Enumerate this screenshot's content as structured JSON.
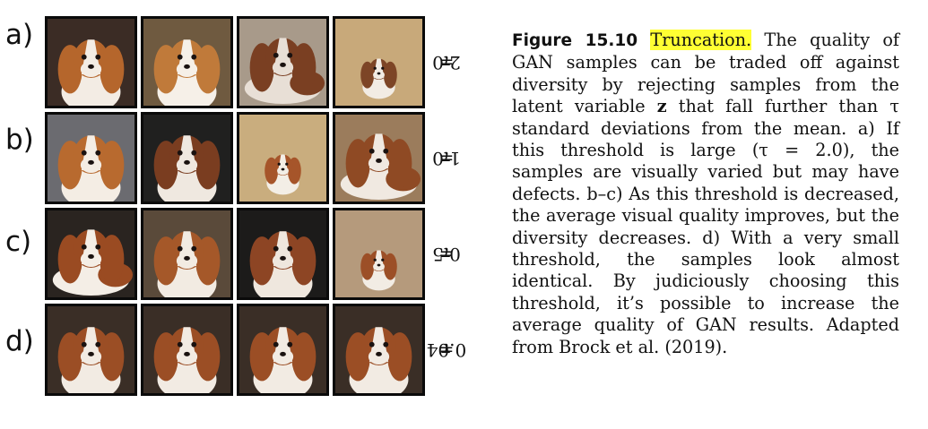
{
  "rows": [
    {
      "label": "a)",
      "tau": "2.0",
      "tiles": [
        {
          "bg": "#3b2c25",
          "coat": "#b5662c",
          "face": "#f3ece4",
          "kind": "portrait"
        },
        {
          "bg": "#6f5a40",
          "coat": "#c07a3a",
          "face": "#f6f0e8",
          "kind": "portrait"
        },
        {
          "bg": "#a89a8a",
          "coat": "#7a3f22",
          "face": "#e8dfd6",
          "kind": "lying"
        },
        {
          "bg": "#c8a97a",
          "coat": "#7d4526",
          "face": "#f2ece4",
          "kind": "small"
        }
      ]
    },
    {
      "label": "b)",
      "tau": "1.0",
      "tiles": [
        {
          "bg": "#6b6b70",
          "coat": "#b86a2f",
          "face": "#f4ede4",
          "kind": "portrait"
        },
        {
          "bg": "#20201f",
          "coat": "#7a3d20",
          "face": "#efe8e0",
          "kind": "portrait"
        },
        {
          "bg": "#c9ad7e",
          "coat": "#a6552a",
          "face": "#f3eee6",
          "kind": "small"
        },
        {
          "bg": "#9b7c5c",
          "coat": "#8f4a24",
          "face": "#f0e9e1",
          "kind": "lying"
        }
      ]
    },
    {
      "label": "c)",
      "tau": "0.5",
      "tiles": [
        {
          "bg": "#2a2420",
          "coat": "#9a4b22",
          "face": "#f4eee6",
          "kind": "lying"
        },
        {
          "bg": "#5a4a3a",
          "coat": "#a55829",
          "face": "#f2ebe2",
          "kind": "portrait"
        },
        {
          "bg": "#1c1b1a",
          "coat": "#8d4524",
          "face": "#efe7de",
          "kind": "portrait"
        },
        {
          "bg": "#b59a7c",
          "coat": "#9c4f27",
          "face": "#f2ece4",
          "kind": "small"
        }
      ]
    },
    {
      "label": "d)",
      "tau": "0.04",
      "tiles": [
        {
          "bg": "#3a2e26",
          "coat": "#9b4e25",
          "face": "#f2ebe3",
          "kind": "portrait"
        },
        {
          "bg": "#3a2e26",
          "coat": "#9b4e25",
          "face": "#f2ebe3",
          "kind": "portrait"
        },
        {
          "bg": "#3a2e26",
          "coat": "#9b4e25",
          "face": "#f2ebe3",
          "kind": "portrait"
        },
        {
          "bg": "#3a2e26",
          "coat": "#9b4e25",
          "face": "#f2ebe3",
          "kind": "portrait"
        }
      ]
    }
  ],
  "tau_symbol": "τ",
  "tau_equals": " = ",
  "caption": {
    "figure_label": "Figure 15.10",
    "highlight": "Truncation.",
    "body": " The quality of GAN samples can be traded off against diversity by rejecting samples from the latent variable ",
    "bold_z": "z",
    "body2": " that fall further than τ standard deviations from the mean. a) If this threshold is large (τ = 2.0), the samples are visually varied but may have defects. b–c) As this threshold is decreased, the average visual quality improves, but the diversity decreases. d) With a very small threshold, the samples look almost identical. By judiciously choosing this threshold, it’s possible to increase the average quality of GAN results. Adapted from Brock et al. (2019)."
  }
}
